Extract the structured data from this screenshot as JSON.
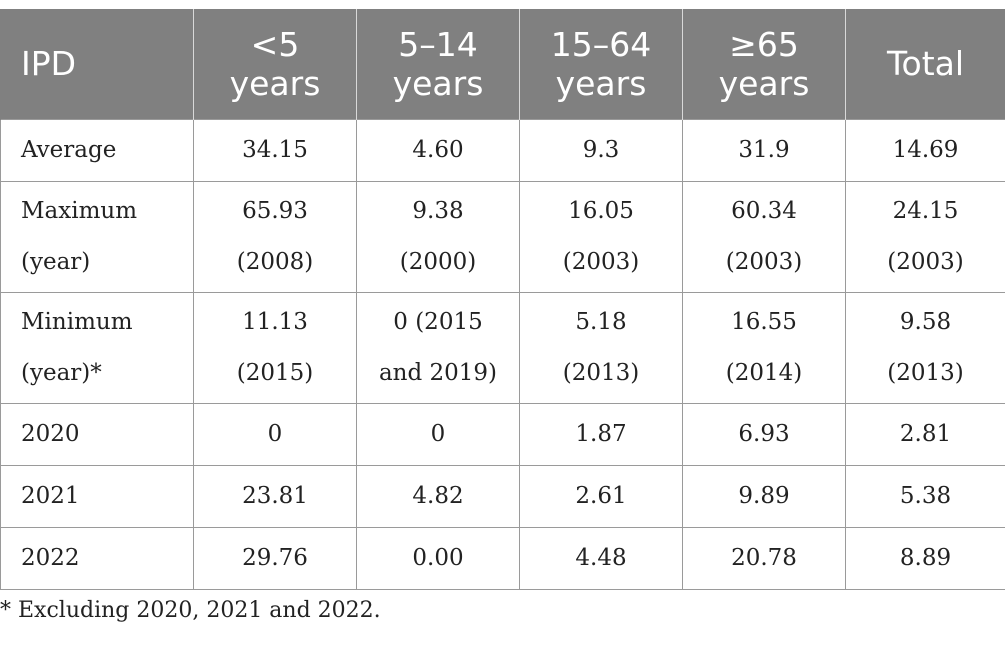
{
  "table": {
    "headers": [
      [
        "IPD"
      ],
      [
        "<5",
        "years"
      ],
      [
        "5–14",
        "years"
      ],
      [
        "15–64",
        "years"
      ],
      [
        "≥65",
        "years"
      ],
      [
        "Total"
      ]
    ],
    "rows": [
      {
        "label": [
          "Average"
        ],
        "cells": [
          [
            "34.15"
          ],
          [
            "4.60"
          ],
          [
            "9.3"
          ],
          [
            "31.9"
          ],
          [
            "14.69"
          ]
        ]
      },
      {
        "label": [
          "Maximum",
          "(year)"
        ],
        "cells": [
          [
            "65.93",
            "(2008)"
          ],
          [
            "9.38",
            "(2000)"
          ],
          [
            "16.05",
            "(2003)"
          ],
          [
            "60.34",
            "(2003)"
          ],
          [
            "24.15",
            "(2003)"
          ]
        ]
      },
      {
        "label": [
          "Minimum",
          "(year)*"
        ],
        "cells": [
          [
            "11.13",
            "(2015)"
          ],
          [
            "0 (2015",
            "and 2019)"
          ],
          [
            "5.18",
            "(2013)"
          ],
          [
            "16.55",
            "(2014)"
          ],
          [
            "9.58",
            "(2013)"
          ]
        ]
      },
      {
        "label": [
          "2020"
        ],
        "cells": [
          [
            "0"
          ],
          [
            "0"
          ],
          [
            "1.87"
          ],
          [
            "6.93"
          ],
          [
            "2.81"
          ]
        ]
      },
      {
        "label": [
          "2021"
        ],
        "cells": [
          [
            "23.81"
          ],
          [
            "4.82"
          ],
          [
            "2.61"
          ],
          [
            "9.89"
          ],
          [
            "5.38"
          ]
        ]
      },
      {
        "label": [
          "2022"
        ],
        "cells": [
          [
            "29.76"
          ],
          [
            "0.00"
          ],
          [
            "4.48"
          ],
          [
            "20.78"
          ],
          [
            "8.89"
          ]
        ]
      }
    ]
  },
  "footnote": "* Excluding 2020, 2021 and 2022.",
  "colors": {
    "header_bg": "#808080",
    "header_text": "#ffffff",
    "border": "#9a9a9a",
    "body_text": "#222222"
  }
}
